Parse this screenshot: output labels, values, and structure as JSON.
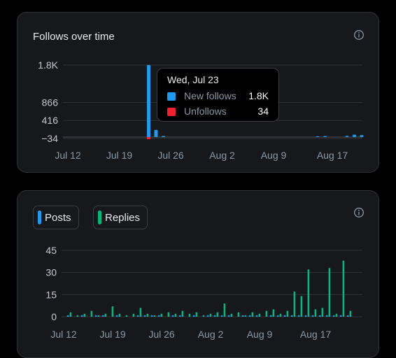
{
  "follows_card": {
    "title": "Follows over time",
    "info_icon": "info-icon"
  },
  "tooltip": {
    "date": "Wed, Jul 23",
    "rows": [
      {
        "label": "New follows",
        "value": "1.8K",
        "color": "#1d9bf0"
      },
      {
        "label": "Unfollows",
        "value": "34",
        "color": "#f4212e"
      }
    ]
  },
  "posts_card": {
    "info_icon": "info-icon",
    "legend": [
      {
        "label": "Posts",
        "color": "#1d9bf0"
      },
      {
        "label": "Replies",
        "color": "#00ba7c"
      }
    ]
  },
  "chart_data": [
    {
      "type": "bar",
      "title": "Follows over time",
      "x_ticks": [
        "Jul 12",
        "Jul 19",
        "Jul 26",
        "Aug 2",
        "Aug 9",
        "Aug 17"
      ],
      "y_ticks": [
        "1.8K",
        "866",
        "416",
        "-34"
      ],
      "ylim": [
        -34,
        1800
      ],
      "series": [
        {
          "name": "New follows",
          "color": "#1d9bf0",
          "points": [
            {
              "x": "Jul 23",
              "y": 1800
            },
            {
              "x": "Jul 24",
              "y": 180
            },
            {
              "x": "Jul 25",
              "y": 30
            },
            {
              "x": "Aug 15",
              "y": 20
            },
            {
              "x": "Aug 16",
              "y": 25
            },
            {
              "x": "Aug 19",
              "y": 30
            },
            {
              "x": "Aug 20",
              "y": 60
            },
            {
              "x": "Aug 21",
              "y": 50
            }
          ]
        },
        {
          "name": "Unfollows",
          "color": "#f4212e",
          "points": [
            {
              "x": "Jul 23",
              "y": 34
            }
          ]
        }
      ]
    },
    {
      "type": "bar",
      "x_ticks": [
        "Jul 12",
        "Jul 19",
        "Jul 26",
        "Aug 2",
        "Aug 9",
        "Aug 17"
      ],
      "y_ticks": [
        "45",
        "30",
        "15",
        "0"
      ],
      "ylim": [
        0,
        45
      ],
      "dates": [
        "Jul 12",
        "Jul 13",
        "Jul 14",
        "Jul 15",
        "Jul 16",
        "Jul 17",
        "Jul 18",
        "Jul 19",
        "Jul 20",
        "Jul 21",
        "Jul 22",
        "Jul 23",
        "Jul 24",
        "Jul 25",
        "Jul 26",
        "Jul 27",
        "Jul 28",
        "Jul 29",
        "Jul 30",
        "Jul 31",
        "Aug 1",
        "Aug 2",
        "Aug 3",
        "Aug 4",
        "Aug 5",
        "Aug 6",
        "Aug 7",
        "Aug 8",
        "Aug 9",
        "Aug 10",
        "Aug 11",
        "Aug 12",
        "Aug 13",
        "Aug 14",
        "Aug 15",
        "Aug 16",
        "Aug 17",
        "Aug 18",
        "Aug 19",
        "Aug 20",
        "Aug 21"
      ],
      "series": [
        {
          "name": "Posts",
          "color": "#1d9bf0",
          "values": [
            1,
            0,
            1,
            0,
            1,
            1,
            0,
            1,
            0,
            0,
            1,
            1,
            1,
            1,
            0,
            1,
            1,
            0,
            1,
            0,
            1,
            1,
            1,
            1,
            0,
            1,
            1,
            1,
            0,
            1,
            1,
            1,
            1,
            1,
            1,
            1,
            1,
            1,
            1,
            1,
            1
          ]
        },
        {
          "name": "Replies",
          "color": "#00ba7c",
          "values": [
            3,
            1,
            2,
            4,
            1,
            2,
            7,
            2,
            1,
            2,
            6,
            2,
            1,
            2,
            3,
            2,
            4,
            2,
            3,
            1,
            2,
            3,
            9,
            2,
            3,
            1,
            3,
            2,
            4,
            5,
            2,
            4,
            17,
            14,
            32,
            5,
            6,
            33,
            2,
            38,
            4
          ]
        }
      ]
    }
  ]
}
